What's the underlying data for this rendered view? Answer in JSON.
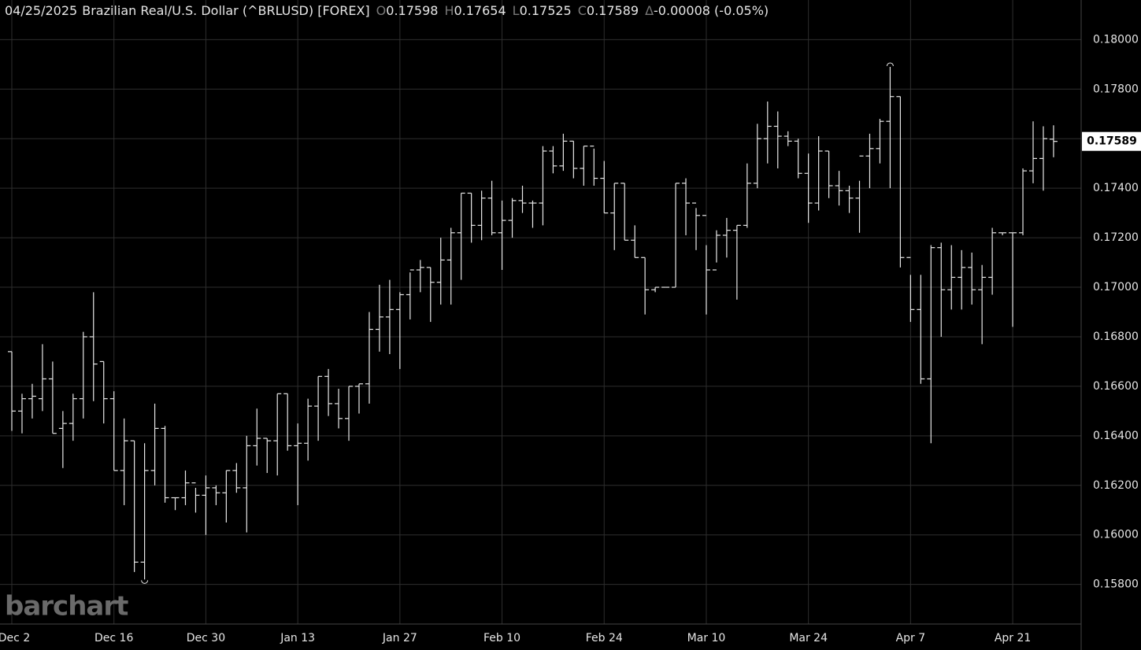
{
  "chart_data": {
    "type": "ohlc",
    "header": {
      "date": "04/25/2025",
      "symbol": "Brazilian Real/U.S. Dollar (^BRLUSD) [FOREX]",
      "fields": [
        {
          "label": "O",
          "value": "0.17598"
        },
        {
          "label": "H",
          "value": "0.17654"
        },
        {
          "label": "L",
          "value": "0.17525"
        },
        {
          "label": "C",
          "value": "0.17589"
        },
        {
          "label": "Δ",
          "value": "-0.00008 (-0.05%)"
        }
      ]
    },
    "last_price_label": "0.17589",
    "watermark": "barchart",
    "color": "#e8e8e8",
    "grid": true,
    "categories": [
      "Dec 2",
      null,
      null,
      null,
      null,
      null,
      null,
      null,
      null,
      null,
      "Dec 16",
      null,
      null,
      null,
      null,
      null,
      null,
      null,
      null,
      "Dec 30",
      null,
      null,
      null,
      null,
      null,
      null,
      null,
      null,
      "Jan 13",
      null,
      null,
      null,
      null,
      null,
      null,
      null,
      null,
      null,
      "Jan 27",
      null,
      null,
      null,
      null,
      null,
      null,
      null,
      null,
      null,
      "Feb 10",
      null,
      null,
      null,
      null,
      null,
      null,
      null,
      null,
      null,
      "Feb 24",
      null,
      null,
      null,
      null,
      null,
      null,
      null,
      null,
      null,
      "Mar 10",
      null,
      null,
      null,
      null,
      null,
      null,
      null,
      null,
      null,
      "Mar 24",
      null,
      null,
      null,
      null,
      null,
      null,
      null,
      null,
      null,
      "Apr 7",
      null,
      null,
      null,
      null,
      null,
      null,
      null,
      null,
      null,
      "Apr 21",
      null,
      null,
      null,
      null
    ],
    "series": [
      {
        "name": "Open",
        "values": [
          0.1674,
          0.165,
          0.1655,
          0.1655,
          0.1663,
          0.1643,
          0.1645,
          0.1655,
          0.168,
          0.167,
          0.1655,
          0.1626,
          0.1638,
          0.1589,
          0.1626,
          0.1643,
          0.1615,
          0.1615,
          0.1621,
          0.1616,
          0.1619,
          0.1617,
          0.1626,
          0.1619,
          0.1636,
          0.1639,
          0.1638,
          0.1657,
          0.1636,
          0.1637,
          0.1652,
          0.1664,
          0.1653,
          0.1647,
          0.166,
          0.1661,
          0.1683,
          0.1688,
          0.1691,
          0.1697,
          0.1707,
          0.1708,
          0.1702,
          0.1711,
          0.1722,
          0.1738,
          0.1725,
          0.1736,
          0.1722,
          0.1727,
          0.1735,
          0.1734,
          0.1734,
          0.1755,
          0.1749,
          0.1759,
          0.1748,
          0.1757,
          0.1744,
          0.173,
          0.1742,
          0.1719,
          0.1712,
          0.1699,
          0.17,
          0.17,
          0.1742,
          0.1734,
          0.1729,
          0.1707,
          0.1721,
          0.1723,
          0.1725,
          0.1742,
          0.176,
          0.1765,
          0.1761,
          0.1759,
          0.1746,
          0.1734,
          0.1755,
          0.1741,
          0.1739,
          0.1736,
          0.1753,
          0.1756,
          0.1767,
          0.1777,
          0.1712,
          0.1691,
          0.1663,
          0.1716,
          0.1699,
          0.1704,
          0.1708,
          0.1699,
          0.1704,
          0.1722,
          0.1722,
          0.1722,
          0.1747,
          0.1752,
          0.17598
        ]
      },
      {
        "name": "High",
        "values": [
          0.1674,
          0.1657,
          0.1661,
          0.1677,
          0.167,
          0.165,
          0.1657,
          0.1682,
          0.1698,
          0.167,
          0.1658,
          0.1647,
          0.1638,
          0.1637,
          0.1653,
          0.1644,
          0.1615,
          0.1626,
          0.1619,
          0.1624,
          0.162,
          0.1626,
          0.1629,
          0.164,
          0.1651,
          0.1639,
          0.1657,
          0.1657,
          0.1645,
          0.1655,
          0.1664,
          0.1667,
          0.1659,
          0.166,
          0.1661,
          0.169,
          0.1701,
          0.1703,
          0.1698,
          0.1706,
          0.1711,
          0.1708,
          0.172,
          0.1724,
          0.1738,
          0.1738,
          0.1739,
          0.1743,
          0.1735,
          0.1736,
          0.1741,
          0.1735,
          0.1757,
          0.1757,
          0.1762,
          0.1759,
          0.1757,
          0.1756,
          0.1751,
          0.1742,
          0.1742,
          0.1725,
          0.1712,
          0.17,
          0.17,
          0.1742,
          0.1744,
          0.1732,
          0.1717,
          0.1723,
          0.1728,
          0.1725,
          0.175,
          0.1766,
          0.1775,
          0.1771,
          0.1763,
          0.176,
          0.1754,
          0.1761,
          0.1755,
          0.1747,
          0.1741,
          0.1743,
          0.1762,
          0.1768,
          0.1789,
          0.1777,
          0.1705,
          0.1705,
          0.1717,
          0.1718,
          0.1717,
          0.1715,
          0.1714,
          0.1709,
          0.1724,
          0.1722,
          0.1722,
          0.1748,
          0.1767,
          0.1765,
          0.17654
        ]
      },
      {
        "name": "Low",
        "values": [
          0.1642,
          0.1641,
          0.1647,
          0.165,
          0.1641,
          0.1627,
          0.1638,
          0.1647,
          0.1654,
          0.1645,
          0.1626,
          0.1612,
          0.1585,
          0.1582,
          0.162,
          0.1613,
          0.161,
          0.1612,
          0.1609,
          0.16,
          0.1612,
          0.1605,
          0.1617,
          0.1601,
          0.1628,
          0.1625,
          0.1624,
          0.1634,
          0.1612,
          0.163,
          0.1638,
          0.1648,
          0.1643,
          0.1638,
          0.1649,
          0.1653,
          0.1674,
          0.1673,
          0.1667,
          0.1687,
          0.1698,
          0.1686,
          0.1693,
          0.1693,
          0.1703,
          0.1718,
          0.1719,
          0.1721,
          0.1707,
          0.172,
          0.173,
          0.1724,
          0.1725,
          0.1746,
          0.1747,
          0.1744,
          0.1741,
          0.1741,
          0.173,
          0.1715,
          0.1719,
          0.1712,
          0.1689,
          0.1698,
          0.17,
          0.17,
          0.1721,
          0.1715,
          0.1689,
          0.171,
          0.1712,
          0.1695,
          0.1724,
          0.174,
          0.175,
          0.1748,
          0.1757,
          0.1744,
          0.1726,
          0.1731,
          0.1736,
          0.1733,
          0.173,
          0.1722,
          0.174,
          0.175,
          0.174,
          0.1708,
          0.1686,
          0.1661,
          0.1637,
          0.168,
          0.1691,
          0.1691,
          0.1693,
          0.1677,
          0.1697,
          0.1721,
          0.1684,
          0.1721,
          0.1742,
          0.1739,
          0.17525
        ]
      },
      {
        "name": "Close",
        "values": [
          0.165,
          0.1655,
          0.1656,
          0.1663,
          0.1641,
          0.1645,
          0.1655,
          0.168,
          0.1669,
          0.1655,
          0.1626,
          0.1638,
          0.1589,
          0.1626,
          0.1643,
          0.1615,
          0.1615,
          0.1621,
          0.1616,
          0.1619,
          0.1617,
          0.1626,
          0.1619,
          0.1636,
          0.1639,
          0.1638,
          0.1657,
          0.1636,
          0.1637,
          0.1652,
          0.1664,
          0.1653,
          0.1647,
          0.166,
          0.1661,
          0.1683,
          0.1688,
          0.1691,
          0.1697,
          0.1707,
          0.1708,
          0.1702,
          0.1711,
          0.1722,
          0.1738,
          0.1725,
          0.1736,
          0.1722,
          0.1727,
          0.1735,
          0.1734,
          0.1734,
          0.1755,
          0.1749,
          0.1759,
          0.1748,
          0.1757,
          0.1744,
          0.173,
          0.1742,
          0.1719,
          0.1712,
          0.1699,
          0.17,
          0.17,
          0.1742,
          0.1734,
          0.1729,
          0.1707,
          0.1721,
          0.1723,
          0.1725,
          0.1742,
          0.176,
          0.1765,
          0.1761,
          0.1759,
          0.1746,
          0.1734,
          0.1755,
          0.1741,
          0.1739,
          0.1736,
          0.1753,
          0.1756,
          0.1767,
          0.1777,
          0.1712,
          0.1691,
          0.1663,
          0.1716,
          0.1699,
          0.1704,
          0.1708,
          0.1699,
          0.1704,
          0.1722,
          0.1722,
          0.1722,
          0.1747,
          0.1752,
          0.176,
          0.17589
        ]
      }
    ],
    "ylim": [
      0.1564,
      0.1816
    ],
    "yticks": [
      {
        "value": 0.158,
        "label": "0.15800"
      },
      {
        "value": 0.16,
        "label": "0.16000"
      },
      {
        "value": 0.162,
        "label": "0.16200"
      },
      {
        "value": 0.164,
        "label": "0.16400"
      },
      {
        "value": 0.166,
        "label": "0.16600"
      },
      {
        "value": 0.168,
        "label": "0.16800"
      },
      {
        "value": 0.17,
        "label": "0.17000"
      },
      {
        "value": 0.172,
        "label": "0.17200"
      },
      {
        "value": 0.174,
        "label": "0.17400"
      },
      {
        "value": 0.176,
        "label": "0.17600"
      },
      {
        "value": 0.178,
        "label": "0.17800"
      },
      {
        "value": 0.18,
        "label": "0.18000"
      }
    ]
  }
}
